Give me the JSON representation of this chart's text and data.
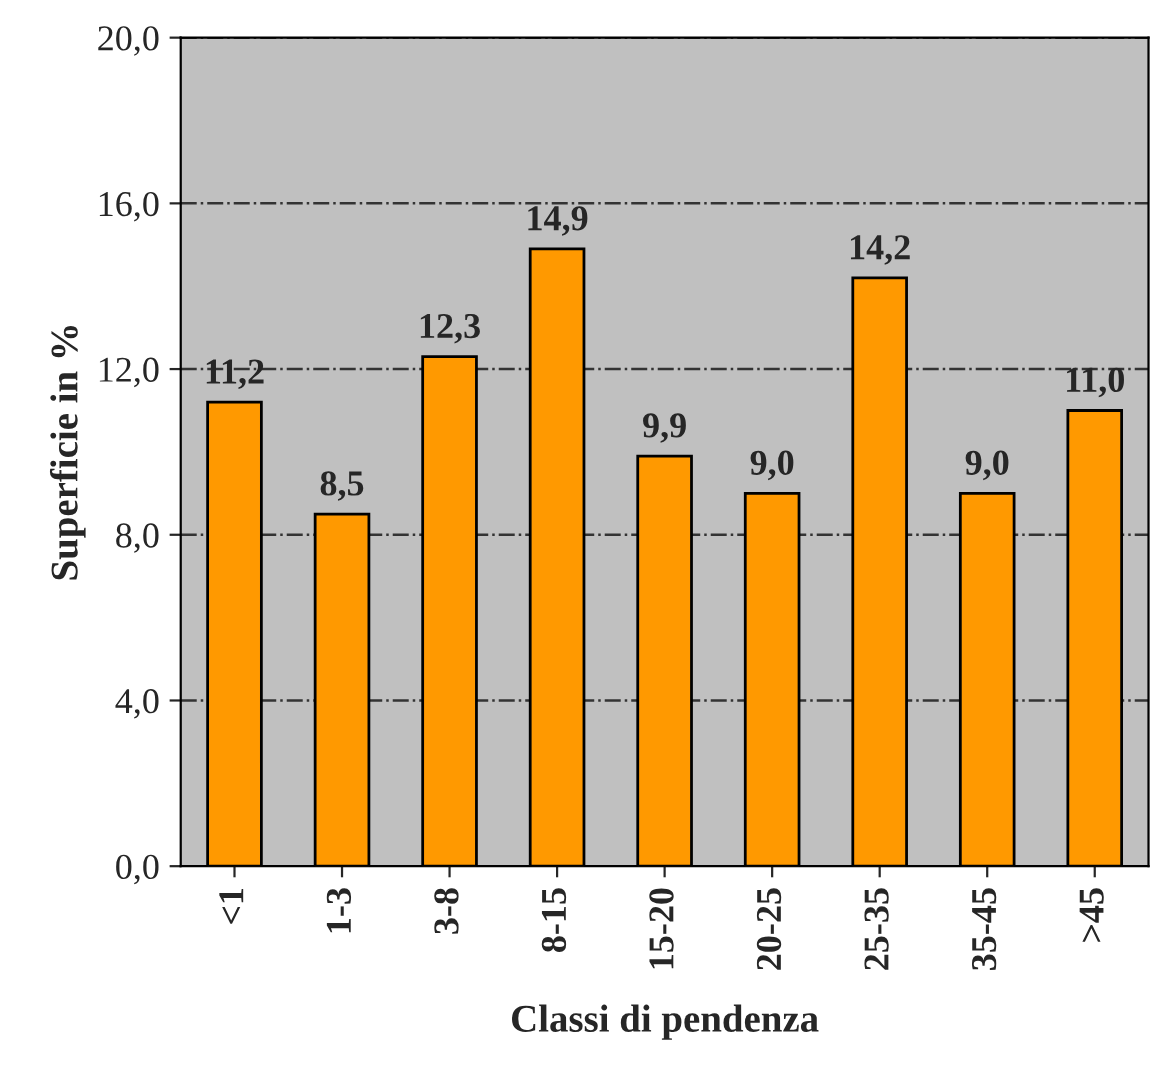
{
  "chart_data": {
    "type": "bar",
    "xlabel": "Classi di pendenza",
    "ylabel": "Superficie in %",
    "categories": [
      "<1",
      "1-3",
      "3-8",
      "8-15",
      "15-20",
      "20-25",
      "25-35",
      "35-45",
      ">45"
    ],
    "values": [
      11.2,
      8.5,
      12.3,
      14.9,
      9.9,
      9.0,
      14.2,
      9.0,
      11.0
    ],
    "value_labels": [
      "11,2",
      "8,5",
      "12,3",
      "14,9",
      "9,9",
      "9,0",
      "14,2",
      "9,0",
      "11,0"
    ],
    "color": "#ff9900",
    "ylim": [
      0,
      20
    ],
    "yticks": [
      {
        "value": 0,
        "label": "0,0"
      },
      {
        "value": 4,
        "label": "4,0"
      },
      {
        "value": 8,
        "label": "8,0"
      },
      {
        "value": 12,
        "label": "12,0"
      },
      {
        "value": 16,
        "label": "16,0"
      },
      {
        "value": 20,
        "label": "20,0"
      }
    ],
    "grid": "y",
    "line_style": "dashdot",
    "legend": false
  }
}
